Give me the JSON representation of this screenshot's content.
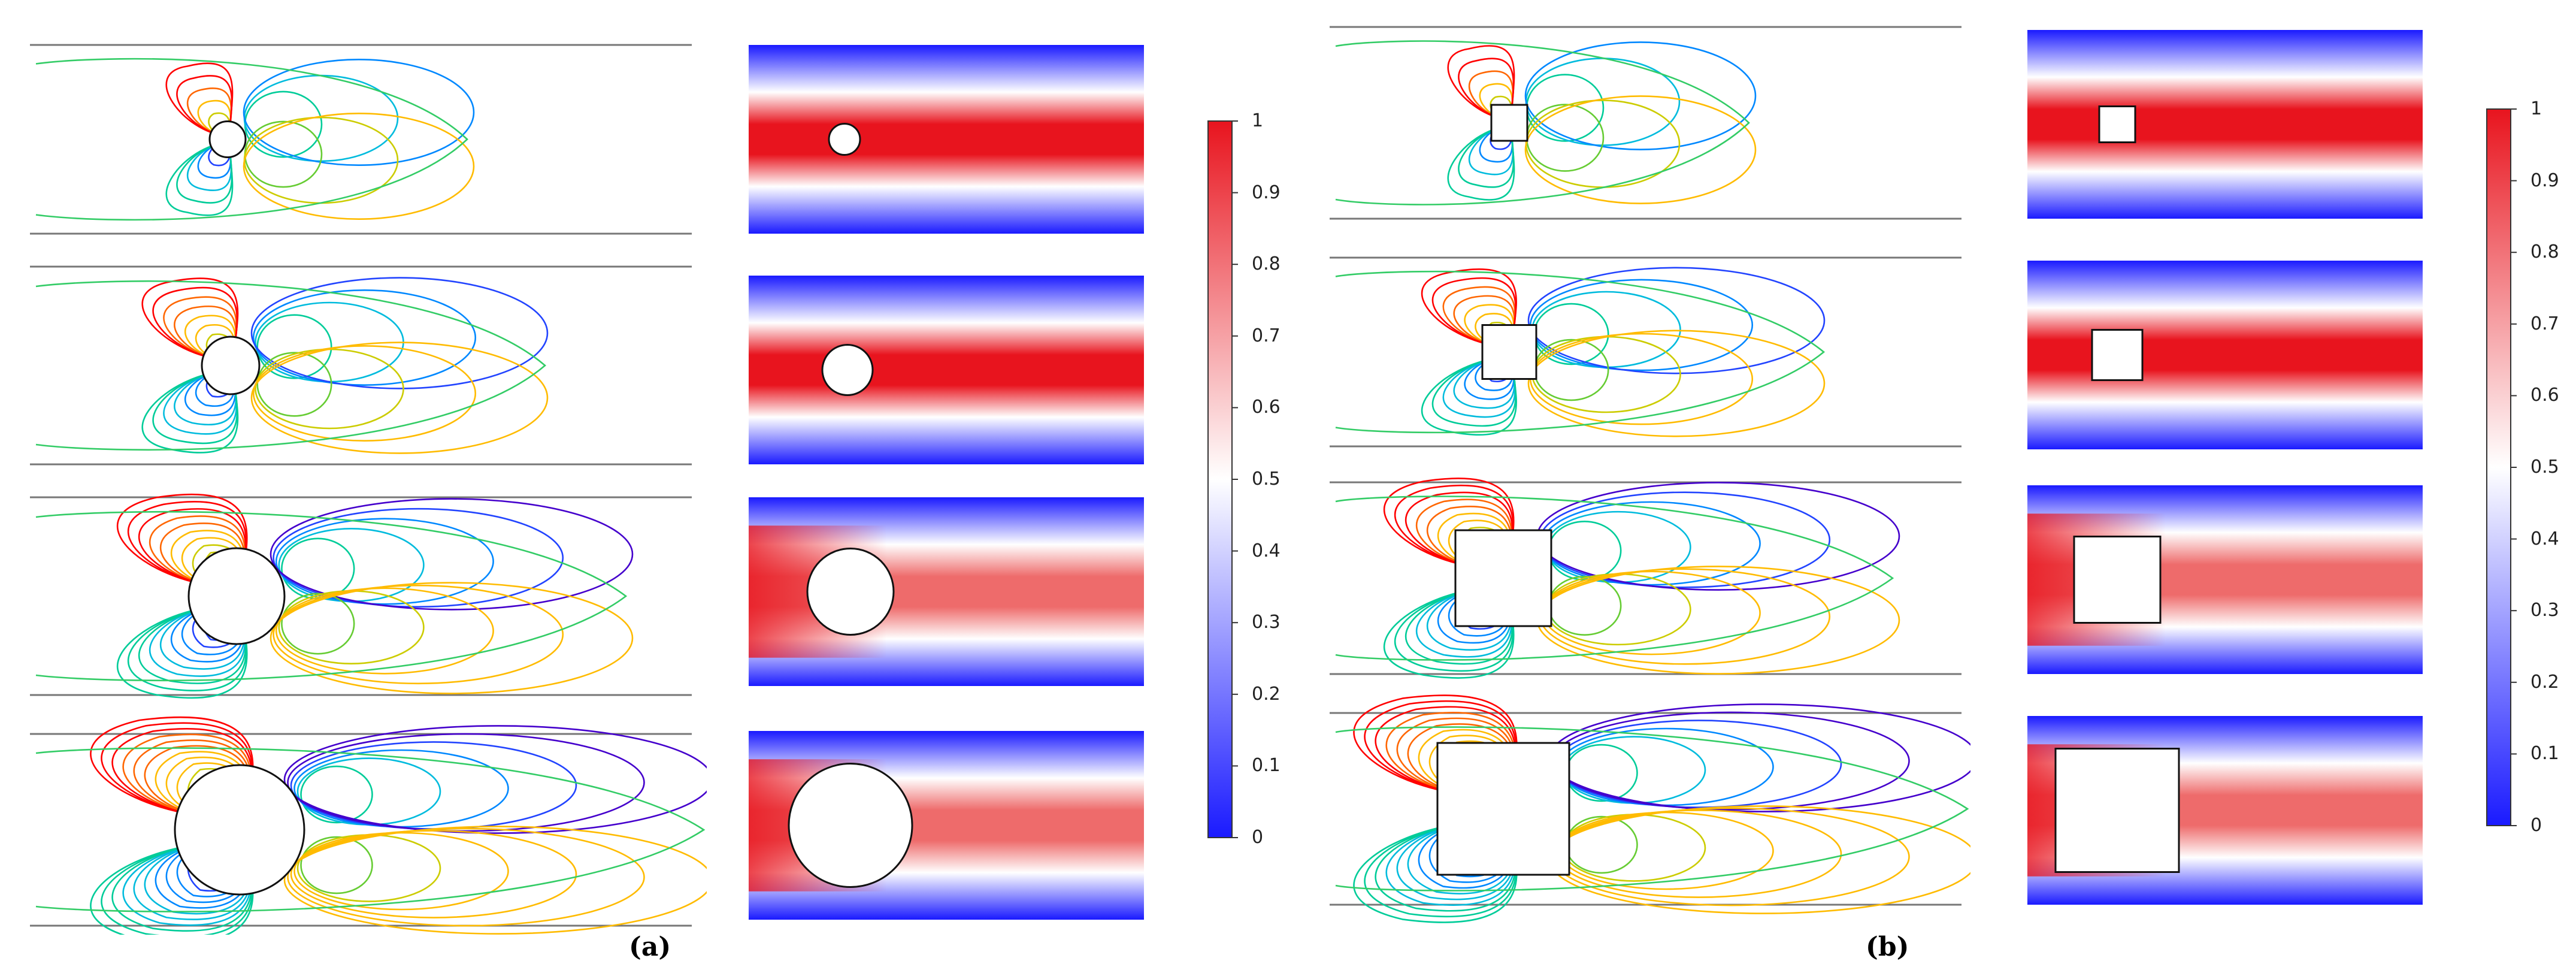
{
  "figure": {
    "panels": [
      {
        "label": "(a)",
        "obstacle": "circle"
      },
      {
        "label": "(b)",
        "obstacle": "square"
      }
    ],
    "colorbar": {
      "min": 0,
      "max": 1,
      "ticks": [
        "1",
        "0.9",
        "0.8",
        "0.7",
        "0.6",
        "0.5",
        "0.4",
        "0.3",
        "0.2",
        "0.1",
        "0"
      ],
      "colors": {
        "high": "#e8141e",
        "mid": "#ffffff",
        "low": "#1a1aff"
      }
    },
    "contour_colors": [
      "#ff0000",
      "#ff6600",
      "#ffbb00",
      "#cccc00",
      "#66cc33",
      "#00cc99",
      "#00bbdd",
      "#0088ff",
      "#2244ff",
      "#4400cc"
    ]
  }
}
